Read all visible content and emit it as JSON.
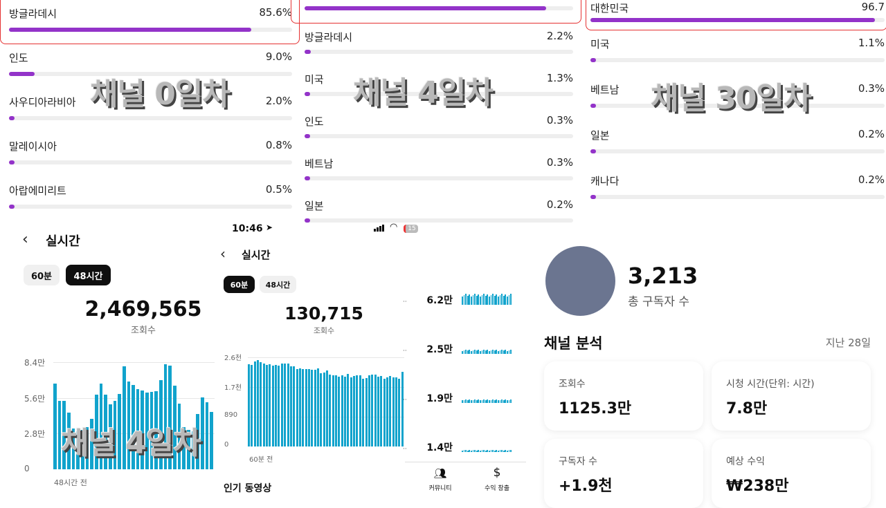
{
  "watermarks": {
    "day0": "채널 0일차",
    "day4_top": "채널 4일차",
    "day30": "채널 30일차",
    "day4_bottom": "채널 4일차"
  },
  "panel_day0": {
    "items": [
      {
        "label": "방글라데시",
        "pct": "85.6%",
        "value": 85.6
      },
      {
        "label": "인도",
        "pct": "9.0%",
        "value": 9.0
      },
      {
        "label": "사우디아라비아",
        "pct": "2.0%",
        "value": 2.0
      },
      {
        "label": "말레이시아",
        "pct": "0.8%",
        "value": 0.8
      },
      {
        "label": "아랍에미리트",
        "pct": "0.5%",
        "value": 0.5
      }
    ]
  },
  "panel_day4": {
    "top_value": 90,
    "items": [
      {
        "label": "방글라데시",
        "pct": "2.2%",
        "value": 2.2
      },
      {
        "label": "미국",
        "pct": "1.3%",
        "value": 1.3
      },
      {
        "label": "인도",
        "pct": "0.3%",
        "value": 0.3
      },
      {
        "label": "베트남",
        "pct": "0.3%",
        "value": 0.3
      },
      {
        "label": "일본",
        "pct": "0.2%",
        "value": 0.2
      }
    ]
  },
  "panel_day30": {
    "top": {
      "label": "대한민국",
      "pct": "96.7",
      "value": 96.7
    },
    "items": [
      {
        "label": "미국",
        "pct": "1.1%",
        "value": 1.1
      },
      {
        "label": "베트남",
        "pct": "0.3%",
        "value": 0.3
      },
      {
        "label": "일본",
        "pct": "0.2%",
        "value": 0.2
      },
      {
        "label": "캐나다",
        "pct": "0.2%",
        "value": 0.2
      }
    ]
  },
  "realtime_48h": {
    "title": "실시간",
    "tabs": [
      "60분",
      "48시간"
    ],
    "active_tab": "48시간",
    "total": "2,469,565",
    "total_label": "조회수",
    "x_label": "48시간 전"
  },
  "realtime_60m": {
    "status_time": "10:46",
    "battery": "15",
    "title": "실시간",
    "tabs": [
      "60분",
      "48시간"
    ],
    "active_tab": "60분",
    "total": "130,715",
    "total_label": "조회수",
    "x_label": "60분 전",
    "popular_label": "인기 동영상"
  },
  "side_list": {
    "values": [
      "6.2만",
      "2.5만",
      "1.9만",
      "1.4만"
    ],
    "nav": [
      {
        "label": "커뮤니티",
        "icon": "community-icon"
      },
      {
        "label": "수익 창출",
        "icon": "dollar-icon"
      }
    ]
  },
  "channel": {
    "subscribers": "3,213",
    "subscribers_label": "총 구독자 수",
    "analytics_title": "채널 분석",
    "period": "지난 28일",
    "cards": [
      {
        "label": "조회수",
        "value": "1125.3만"
      },
      {
        "label": "시청 시간(단위: 시간)",
        "value": "7.8만"
      },
      {
        "label": "구독자 수",
        "value": "+1.9천"
      },
      {
        "label": "예상 수익",
        "value": "₩238만"
      }
    ]
  },
  "colors": {
    "accent": "#9333c9",
    "bar": "#11a3cc",
    "highlight_border": "#e53030"
  },
  "chart_data": [
    {
      "type": "bar",
      "ylim": [
        0,
        84000
      ],
      "yticks": [
        "0",
        "2.8만",
        "5.6만",
        "8.4만"
      ],
      "xlabel": "48시간 전",
      "values": [
        67200,
        53400,
        53700,
        44300,
        32000,
        30000,
        31000,
        33000,
        39700,
        58600,
        67200,
        58600,
        51200,
        53400,
        59100,
        80600,
        69000,
        66000,
        62700,
        61600,
        60200,
        60700,
        61300,
        70100,
        82400,
        81500,
        65600,
        51700,
        33000,
        31000,
        30000,
        43400,
        56400,
        52800,
        45000
      ]
    },
    {
      "type": "bar",
      "ylim": [
        0,
        2600
      ],
      "yticks": [
        "0",
        "890",
        "1.7천",
        "2.6천"
      ],
      "xlabel": "60분 전",
      "values": [
        2400,
        2380,
        2470,
        2520,
        2450,
        2410,
        2370,
        2400,
        2360,
        2370,
        2350,
        2420,
        2410,
        2420,
        2340,
        2340,
        2250,
        2280,
        2250,
        2250,
        2250,
        2230,
        2230,
        2280,
        2130,
        2150,
        2220,
        2100,
        2080,
        2070,
        2040,
        2070,
        2040,
        2120,
        2020,
        2050,
        2070,
        2070,
        1980,
        1990,
        2070,
        2090,
        2090,
        2030,
        2050,
        1980,
        2010,
        2060,
        2020,
        2020,
        1980,
        2170
      ]
    }
  ]
}
